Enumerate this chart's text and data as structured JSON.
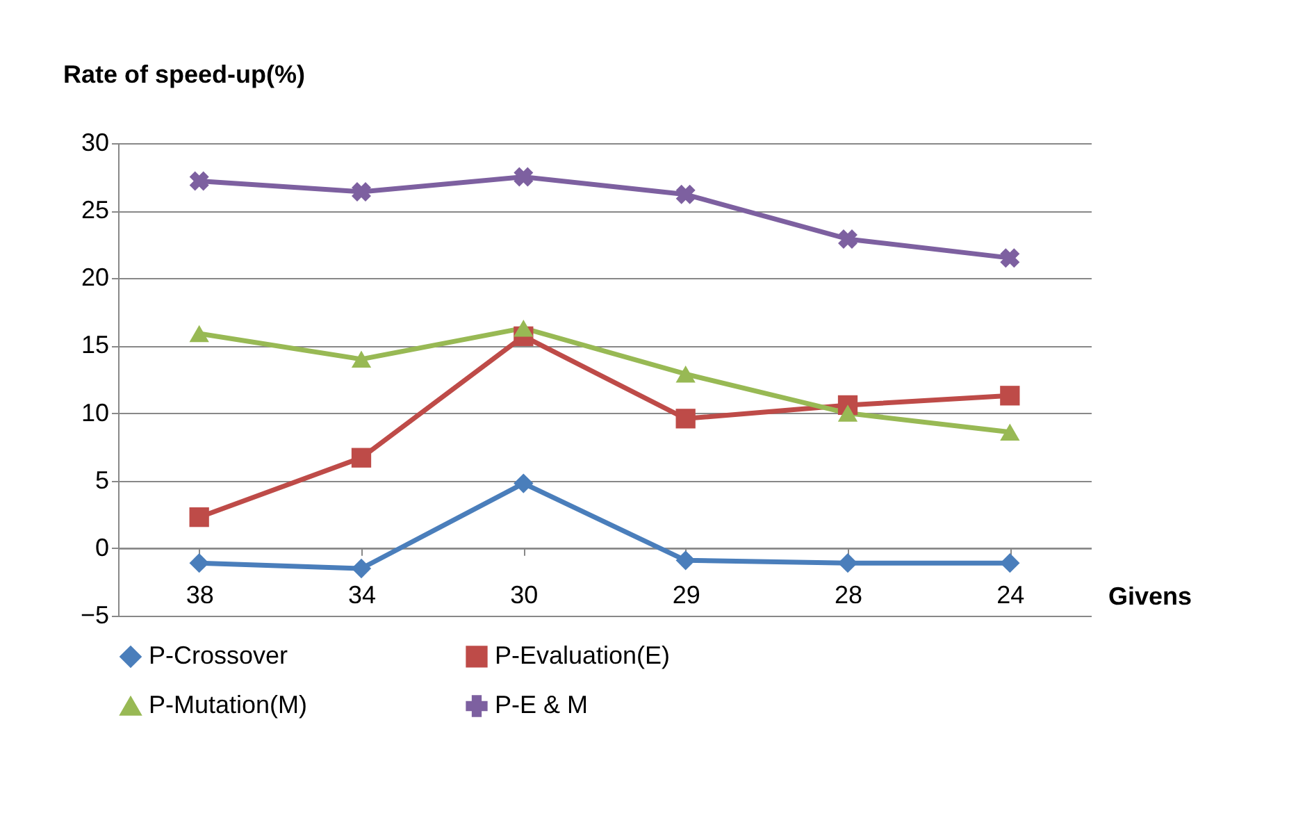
{
  "chart_data": {
    "type": "line",
    "xlabel": "Givens",
    "ylabel": "Rate of speed-up(%)",
    "categories": [
      "38",
      "34",
      "30",
      "29",
      "28",
      "24"
    ],
    "series": [
      {
        "name": "P-Crossover",
        "color": "#4a7ebb",
        "marker": "diamond",
        "values": [
          -1.1,
          -1.5,
          4.8,
          -0.9,
          -1.1,
          -1.1
        ]
      },
      {
        "name": "P-Evaluation(E)",
        "color": "#be4b48",
        "marker": "square",
        "values": [
          2.3,
          6.7,
          15.7,
          9.6,
          10.6,
          11.3
        ]
      },
      {
        "name": "P-Mutation(M)",
        "color": "#98b954",
        "marker": "triangle",
        "values": [
          15.9,
          14.0,
          16.3,
          12.9,
          10.0,
          8.6
        ]
      },
      {
        "name": "P-E & M",
        "color": "#7d60a0",
        "marker": "cross",
        "values": [
          27.2,
          26.4,
          27.5,
          26.2,
          22.9,
          21.5
        ]
      }
    ],
    "ylim": [
      -5,
      30
    ],
    "yticks": [
      -5,
      0,
      5,
      10,
      15,
      20,
      25,
      30
    ],
    "grid": "y",
    "legend": "bottom",
    "line_style": "solid"
  }
}
